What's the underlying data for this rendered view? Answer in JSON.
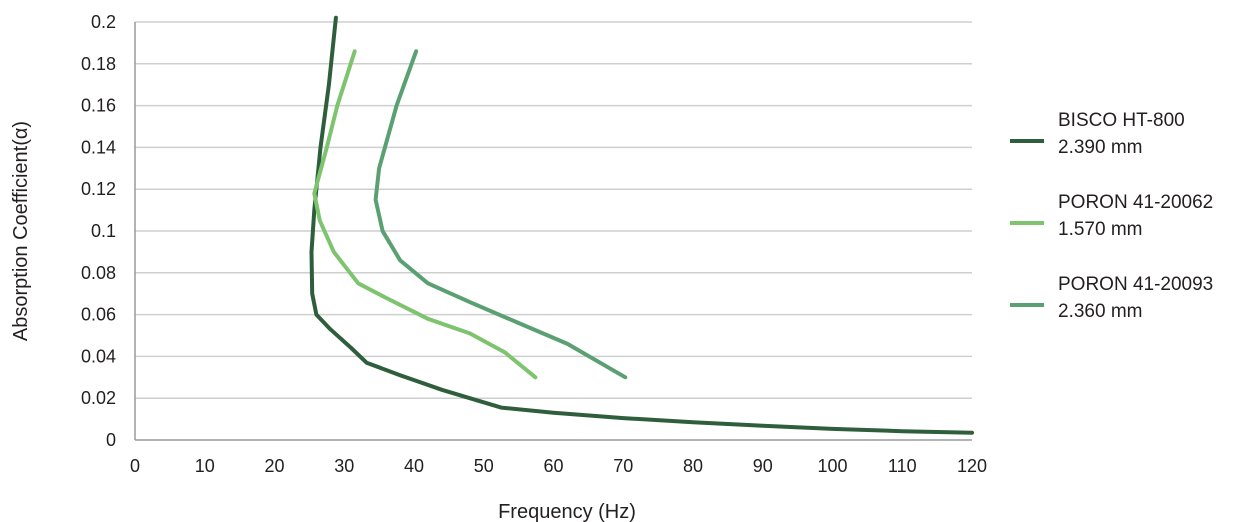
{
  "chart_data": {
    "type": "line",
    "xlabel": "Frequency (Hz)",
    "ylabel": "Absorption Coefficient(α)",
    "xlim": [
      0,
      120
    ],
    "ylim": [
      0,
      0.2
    ],
    "x_ticks": [
      "0",
      "10",
      "20",
      "30",
      "40",
      "50",
      "60",
      "70",
      "80",
      "90",
      "100",
      "110",
      "120"
    ],
    "y_ticks": [
      "0",
      "0.02",
      "0.04",
      "0.06",
      "0.08",
      "0.1",
      "0.12",
      "0.14",
      "0.16",
      "0.18",
      "0.2"
    ],
    "grid": "horizontal",
    "legend_position": "right",
    "series": [
      {
        "name": "BISCO HT-800",
        "name_line2": "2.390 mm",
        "color": "#2e5e3c",
        "points": [
          [
            28.8,
            0.202
          ],
          [
            27.8,
            0.17
          ],
          [
            26.6,
            0.14
          ],
          [
            25.7,
            0.11
          ],
          [
            25.3,
            0.09
          ],
          [
            25.4,
            0.07
          ],
          [
            26,
            0.06
          ],
          [
            28,
            0.053
          ],
          [
            31,
            0.044
          ],
          [
            33.2,
            0.037
          ],
          [
            38,
            0.031
          ],
          [
            44,
            0.024
          ],
          [
            48,
            0.02
          ],
          [
            52.5,
            0.0155
          ],
          [
            60,
            0.013
          ],
          [
            70,
            0.0105
          ],
          [
            80,
            0.0085
          ],
          [
            90,
            0.0068
          ],
          [
            100,
            0.0053
          ],
          [
            110,
            0.0042
          ],
          [
            120,
            0.0035
          ]
        ]
      },
      {
        "name": "PORON 41-20062",
        "name_line2": "1.570 mm",
        "color": "#7ec46f",
        "points": [
          [
            31.5,
            0.186
          ],
          [
            29,
            0.16
          ],
          [
            27.5,
            0.14
          ],
          [
            25.7,
            0.118
          ],
          [
            26.5,
            0.105
          ],
          [
            28.5,
            0.09
          ],
          [
            32,
            0.075
          ],
          [
            36,
            0.068
          ],
          [
            42,
            0.058
          ],
          [
            48,
            0.051
          ],
          [
            53,
            0.042
          ],
          [
            57.4,
            0.03
          ]
        ]
      },
      {
        "name": "PORON 41-20093",
        "name_line2": "2.360 mm",
        "color": "#5ba073",
        "points": [
          [
            40.3,
            0.186
          ],
          [
            37.5,
            0.16
          ],
          [
            35,
            0.13
          ],
          [
            34.5,
            0.115
          ],
          [
            35.5,
            0.1
          ],
          [
            38,
            0.086
          ],
          [
            42,
            0.075
          ],
          [
            48,
            0.066
          ],
          [
            55,
            0.056
          ],
          [
            62,
            0.046
          ],
          [
            70.3,
            0.03
          ]
        ]
      }
    ]
  }
}
